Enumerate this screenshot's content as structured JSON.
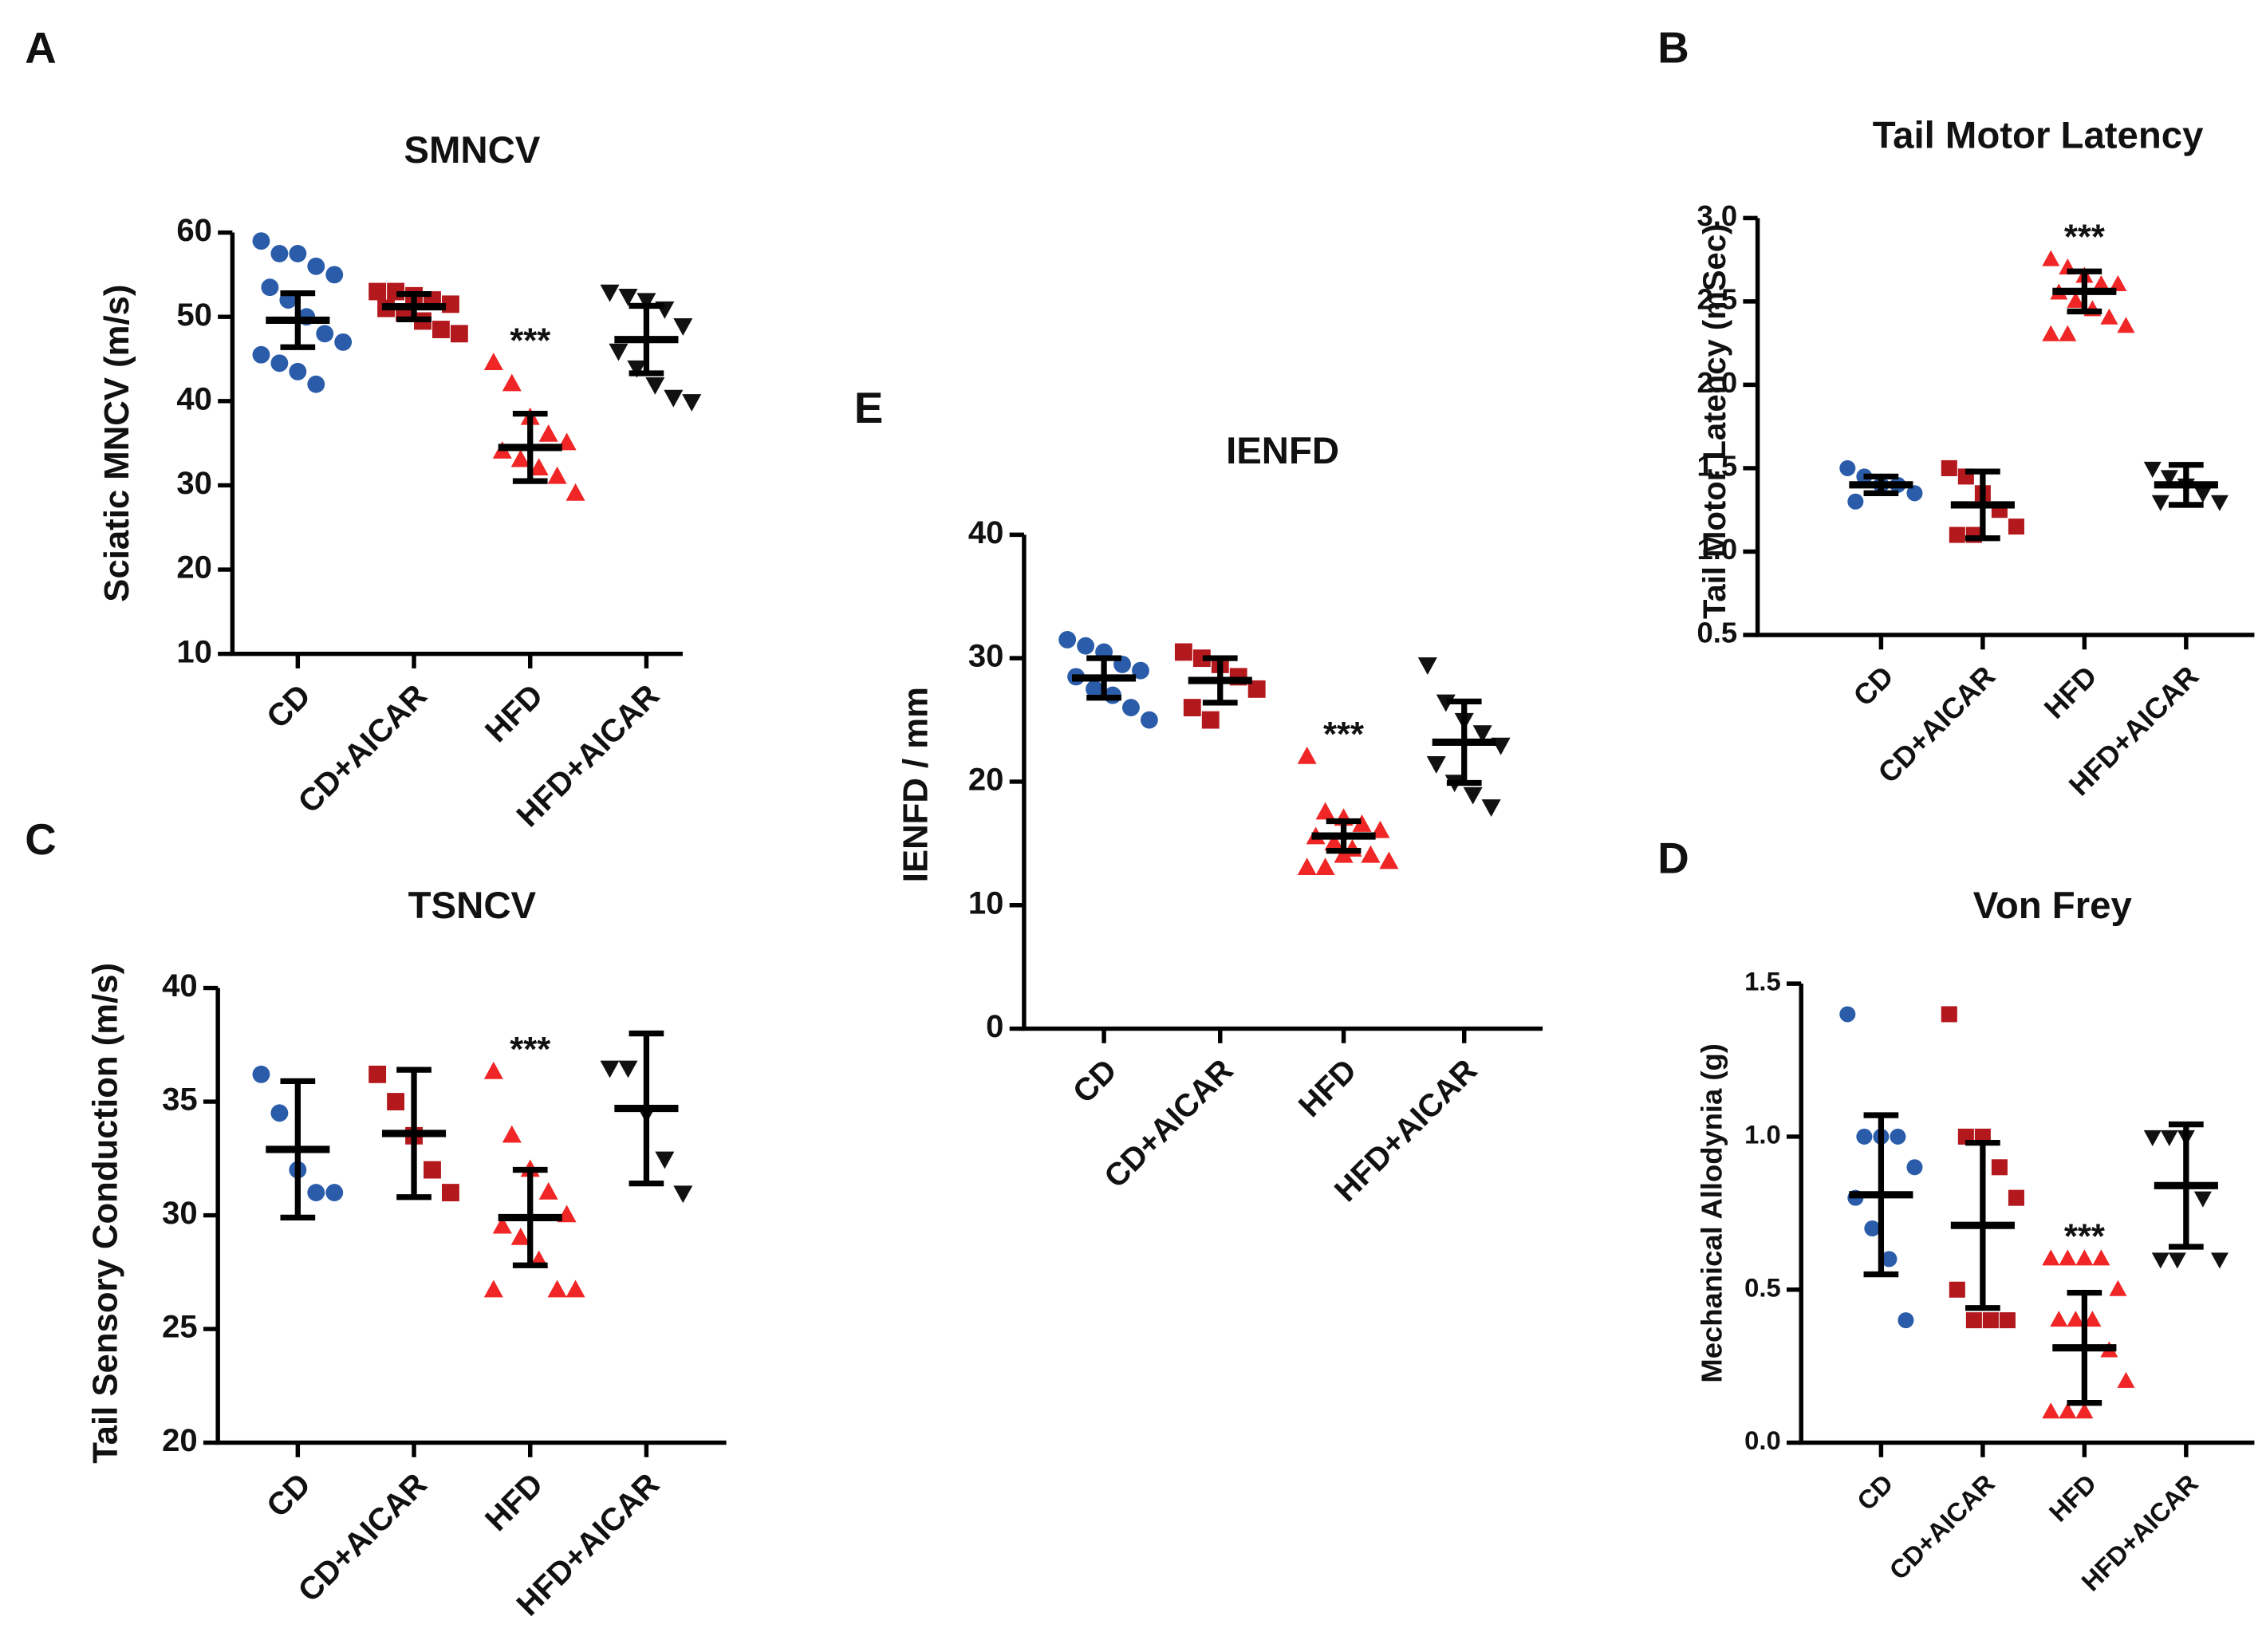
{
  "chart_data": [
    {
      "type": "scatter",
      "panel": "A",
      "title": "SMNCV",
      "ylabel": "Sciatic MNCV (m/s)",
      "categories": [
        "CD",
        "CD+AICAR",
        "HFD",
        "HFD+AICAR"
      ],
      "colors": [
        "#2a5caa",
        "#b3181d",
        "#f02525",
        "#111111"
      ],
      "markers": [
        "circle",
        "square",
        "triangle",
        "triangle-down"
      ],
      "points": [
        [
          59,
          57.5,
          57.5,
          56,
          55,
          53.5,
          52,
          50,
          48,
          47,
          45.5,
          44.5,
          43.5,
          42
        ],
        [
          53,
          53,
          52.5,
          52,
          51.5,
          51,
          50.5,
          49.5,
          48.5,
          48
        ],
        [
          44.5,
          42,
          38,
          36,
          35,
          34,
          33,
          32,
          31,
          29
        ],
        [
          53,
          52.5,
          52,
          51,
          49,
          46,
          44,
          42,
          40.5,
          40
        ]
      ],
      "means": [
        49.6,
        51.2,
        34.5,
        47.3
      ],
      "errors": [
        3.2,
        1.5,
        4,
        4
      ],
      "annotation": {
        "text": "***",
        "at": "HFD"
      },
      "ylim": [
        10,
        60
      ],
      "yticks": [
        10,
        20,
        30,
        40,
        50,
        60
      ]
    },
    {
      "type": "scatter",
      "panel": "B",
      "title": "Tail Motor Latency",
      "ylabel": "Tail Motor Latency (mSec)",
      "categories": [
        "CD",
        "CD+AICAR",
        "HFD",
        "HFD+AICAR"
      ],
      "colors": [
        "#2a5caa",
        "#b3181d",
        "#f02525",
        "#111111"
      ],
      "markers": [
        "circle",
        "square",
        "triangle",
        "triangle-down"
      ],
      "points": [
        [
          1.5,
          1.45,
          1.4,
          1.4,
          1.35,
          1.3
        ],
        [
          1.5,
          1.45,
          1.35,
          1.25,
          1.15,
          1.1,
          1.1
        ],
        [
          2.75,
          2.7,
          2.65,
          2.6,
          2.6,
          2.55,
          2.5,
          2.45,
          2.4,
          2.35,
          2.3,
          2.3
        ],
        [
          1.5,
          1.45,
          1.4,
          1.35,
          1.3,
          1.3
        ]
      ],
      "means": [
        1.4,
        1.28,
        2.56,
        1.4
      ],
      "errors": [
        0.05,
        0.2,
        0.12,
        0.12
      ],
      "annotation": {
        "text": "***",
        "at": "HFD"
      },
      "ylim": [
        0.5,
        3.0
      ],
      "yticks": [
        0.5,
        {
          "value": 1,
          "label": "1.0"
        },
        1.5,
        {
          "value": 2,
          "label": "2.0"
        },
        2.5,
        {
          "value": 3,
          "label": "3.0"
        }
      ]
    },
    {
      "type": "scatter",
      "panel": "C",
      "title": "TSNCV",
      "ylabel": "Tail Sensory Conduction (m/s)",
      "categories": [
        "CD",
        "CD+AICAR",
        "HFD",
        "HFD+AICAR"
      ],
      "colors": [
        "#2a5caa",
        "#b3181d",
        "#f02525",
        "#111111"
      ],
      "markers": [
        "circle",
        "square",
        "triangle",
        "triangle-down"
      ],
      "points": [
        [
          36.2,
          34.5,
          32,
          31,
          31
        ],
        [
          36.2,
          35,
          33.5,
          32,
          31
        ],
        [
          36.3,
          33.5,
          32,
          31,
          30,
          29.5,
          29,
          28,
          26.7,
          26.7,
          26.7
        ],
        [
          36.5,
          36.5,
          34.5,
          32.5,
          31
        ]
      ],
      "means": [
        32.9,
        33.6,
        29.9,
        34.7
      ],
      "errors": [
        3,
        2.8,
        2.1,
        3.3
      ],
      "annotation": {
        "text": "***",
        "at": "HFD"
      },
      "ylim": [
        20,
        40
      ],
      "yticks": [
        20,
        25,
        30,
        35,
        40
      ]
    },
    {
      "type": "scatter",
      "panel": "D",
      "title": "Von Frey",
      "ylabel": "Mechanical Allodynia (g)",
      "categories": [
        "CD",
        "CD+AICAR",
        "HFD",
        "HFD+AICAR"
      ],
      "colors": [
        "#2a5caa",
        "#b3181d",
        "#f02525",
        "#111111"
      ],
      "markers": [
        "circle",
        "square",
        "triangle",
        "triangle-down"
      ],
      "points": [
        [
          1.4,
          1.0,
          1.0,
          1.0,
          0.9,
          0.8,
          0.7,
          0.6,
          0.4
        ],
        [
          1.4,
          1.0,
          1.0,
          0.9,
          0.8,
          0.5,
          0.4,
          0.4,
          0.4
        ],
        [
          0.6,
          0.6,
          0.6,
          0.6,
          0.5,
          0.4,
          0.4,
          0.4,
          0.3,
          0.2,
          0.1,
          0.1,
          0.1
        ],
        [
          1.0,
          1.0,
          1.0,
          0.8,
          0.6,
          0.6,
          0.6
        ]
      ],
      "means": [
        0.81,
        0.71,
        0.31,
        0.84
      ],
      "errors": [
        0.26,
        0.27,
        0.18,
        0.2
      ],
      "annotation": {
        "text": "***",
        "at": "HFD"
      },
      "ylim": [
        0,
        1.5
      ],
      "yticks": [
        {
          "value": 0,
          "label": "0.0"
        },
        0.5,
        {
          "value": 1,
          "label": "1.0"
        },
        1.5
      ]
    },
    {
      "type": "scatter",
      "panel": "E",
      "title": "IENFD",
      "ylabel": "IENFD / mm",
      "categories": [
        "CD",
        "CD+AICAR",
        "HFD",
        "HFD+AICAR"
      ],
      "colors": [
        "#2a5caa",
        "#b3181d",
        "#f02525",
        "#111111"
      ],
      "markers": [
        "circle",
        "square",
        "triangle",
        "triangle-down"
      ],
      "points": [
        [
          31.5,
          31,
          30.5,
          29.5,
          29,
          28.5,
          27.5,
          27,
          26,
          25
        ],
        [
          30.5,
          30,
          29.5,
          28.5,
          27.5,
          26,
          25
        ],
        [
          22,
          17.5,
          17,
          16.5,
          16,
          15.5,
          15,
          14.5,
          14,
          13.5,
          13,
          13,
          14
        ],
        [
          29.5,
          26.5,
          25,
          24,
          23,
          21.5,
          20,
          19,
          18
        ]
      ],
      "means": [
        28.4,
        28.2,
        15.6,
        23.2
      ],
      "errors": [
        1.6,
        1.8,
        1.2,
        3.3
      ],
      "annotation": {
        "text": "***",
        "at": "HFD"
      },
      "ylim": [
        0,
        40
      ],
      "yticks": [
        0,
        10,
        20,
        30,
        40
      ]
    }
  ]
}
